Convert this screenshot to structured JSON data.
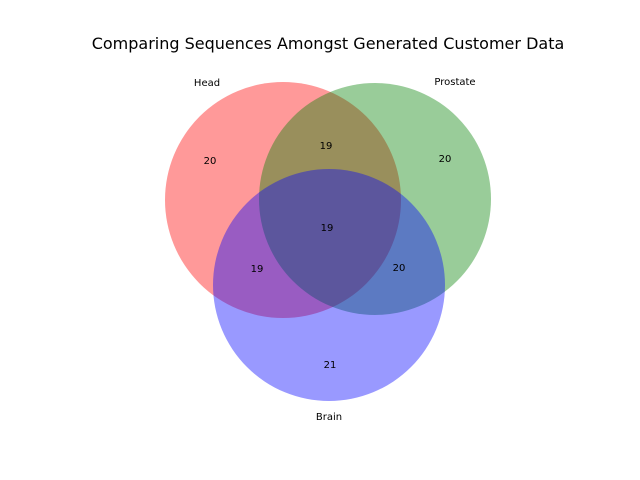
{
  "chart_data": {
    "type": "venn",
    "title": "Comparing Sequences Amongst Generated Customer Data",
    "sets": [
      {
        "name": "Head",
        "color": "#ff0000"
      },
      {
        "name": "Prostate",
        "color": "#008000"
      },
      {
        "name": "Brain",
        "color": "#0000ff"
      }
    ],
    "regions": [
      {
        "sets": [
          "Head"
        ],
        "value": 20
      },
      {
        "sets": [
          "Prostate"
        ],
        "value": 20
      },
      {
        "sets": [
          "Brain"
        ],
        "value": 21
      },
      {
        "sets": [
          "Head",
          "Prostate"
        ],
        "value": 19
      },
      {
        "sets": [
          "Head",
          "Brain"
        ],
        "value": 19
      },
      {
        "sets": [
          "Prostate",
          "Brain"
        ],
        "value": 20
      },
      {
        "sets": [
          "Head",
          "Prostate",
          "Brain"
        ],
        "value": 19
      }
    ],
    "legend": "none",
    "grid": false
  }
}
